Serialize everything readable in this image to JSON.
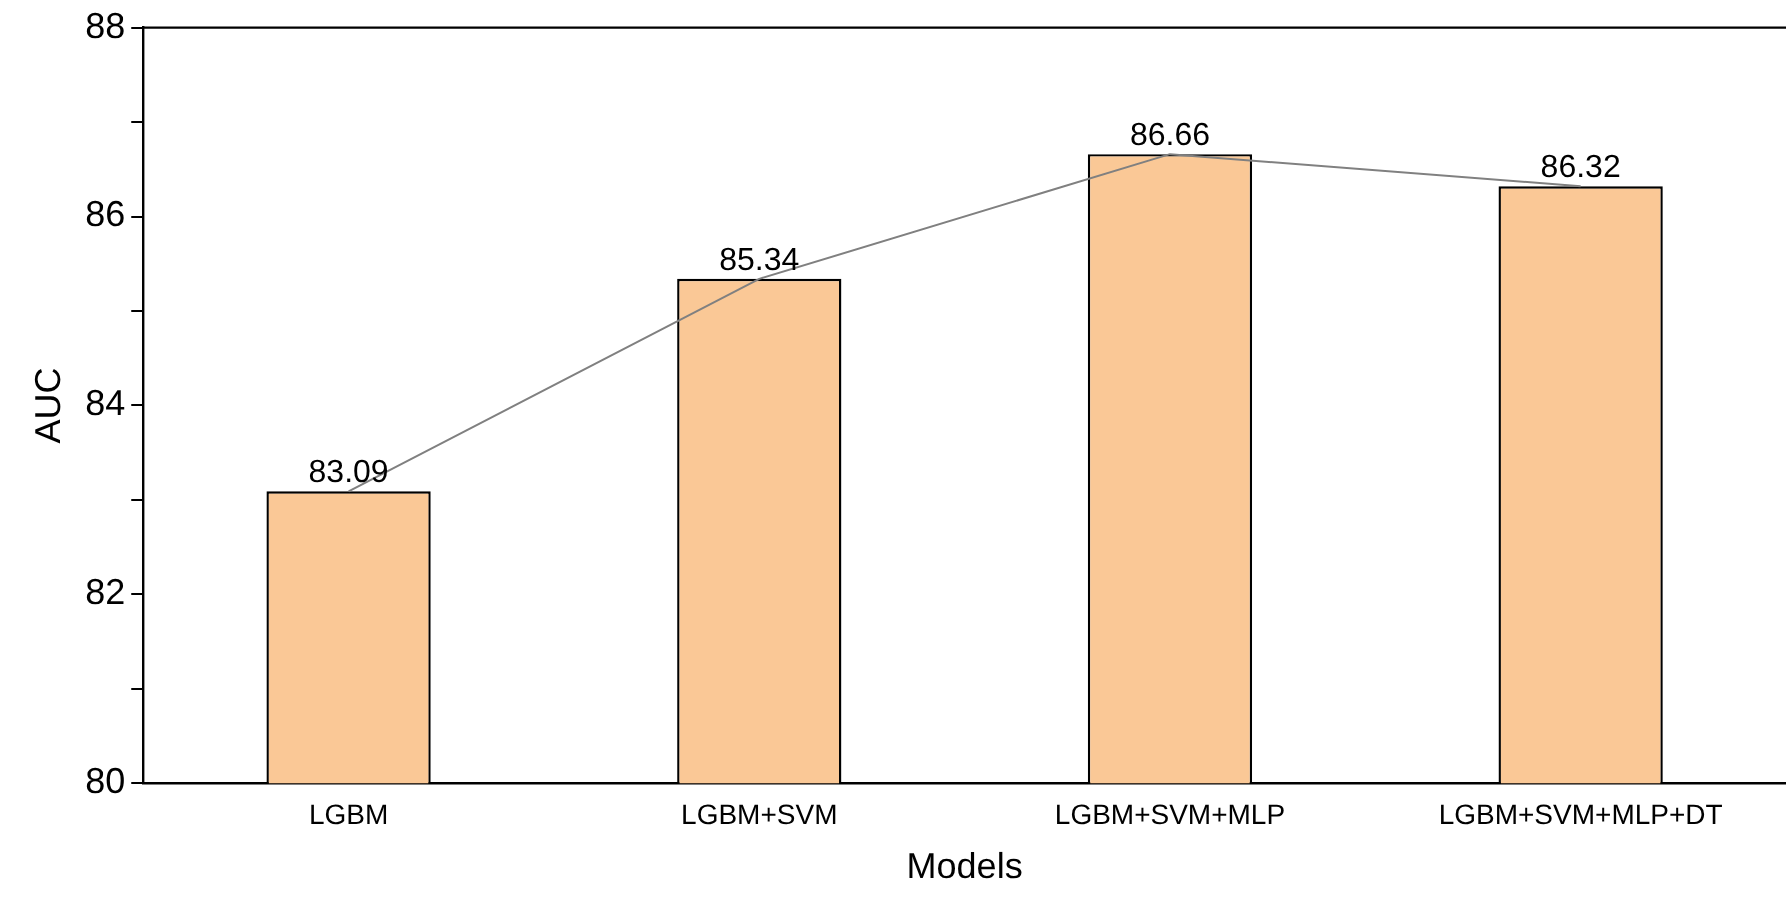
{
  "chart_data": {
    "type": "bar",
    "xlabel": "Models",
    "ylabel": "AUC",
    "categories": [
      "LGBM",
      "LGBM+SVM",
      "LGBM+SVM+MLP",
      "LGBM+SVM+MLP+DT"
    ],
    "series": [
      {
        "color": "#fac896",
        "values": [
          83.09,
          85.34,
          86.66,
          86.32
        ],
        "value_labels": [
          "83.09",
          "85.34",
          "86.66",
          "86.32"
        ]
      },
      {
        "type": "line",
        "color": "#808080",
        "values": [
          83.09,
          85.34,
          86.66,
          86.32
        ]
      }
    ],
    "ylim": [
      80,
      88
    ],
    "yticks": [
      80,
      {
        "value": 81,
        "label": null
      },
      82,
      {
        "value": 83,
        "label": null
      },
      84,
      {
        "value": 85,
        "label": null
      },
      86,
      {
        "value": 87,
        "label": null
      },
      88
    ],
    "grid": false,
    "legend": false,
    "marker": "none"
  }
}
